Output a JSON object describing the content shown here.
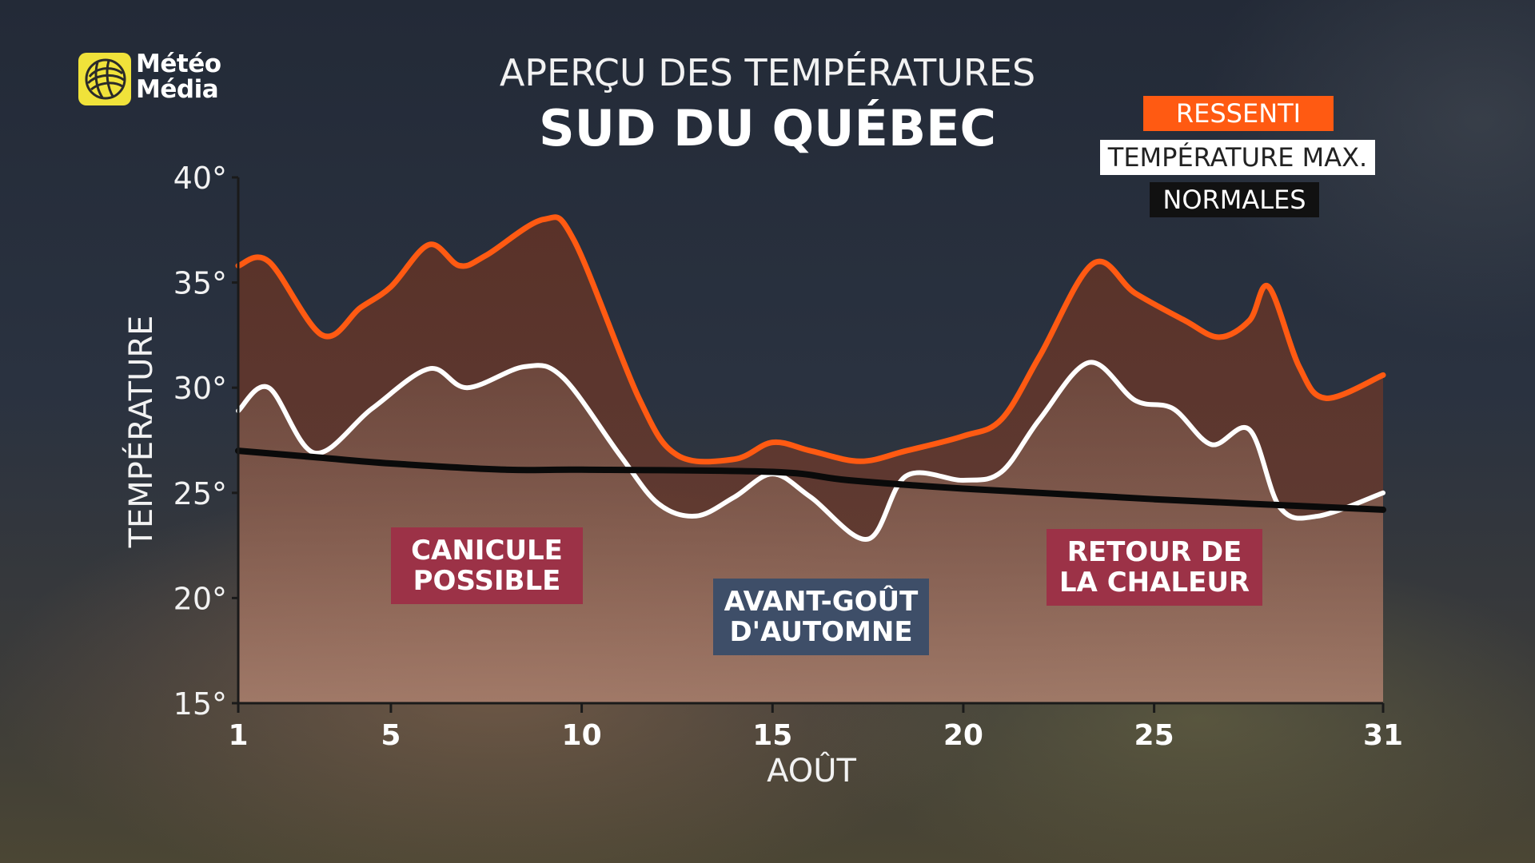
{
  "brand": {
    "line1": "Météo",
    "line2": "Média"
  },
  "title": {
    "line1": "APERÇU DES TEMPÉRATURES",
    "line2": "SUD DU QUÉBEC"
  },
  "legend": {
    "ressenti": "RESSENTI",
    "temp_max": "TEMPÉRATURE MAX.",
    "normales": "NORMALES"
  },
  "callouts": {
    "canicule": [
      "CANICULE",
      "POSSIBLE"
    ],
    "automne": [
      "AVANT-GOÛT",
      "D'AUTOMNE"
    ],
    "chaleur": [
      "RETOUR DE",
      "LA CHALEUR"
    ]
  },
  "colors": {
    "ressenti": "#ff5a12",
    "temp_max": "#ffffff",
    "normales": "#0a0a0a",
    "canicule_box": "#9c3247",
    "automne_box": "#3e4e68"
  },
  "chart_data": {
    "type": "line",
    "title": "APERÇU DES TEMPÉRATURES — SUD DU QUÉBEC",
    "xlabel": "AOÛT",
    "ylabel": "TEMPÉRATURE",
    "xlim": [
      1,
      31
    ],
    "ylim": [
      15,
      40
    ],
    "x_ticks": [
      1,
      5,
      10,
      15,
      20,
      25,
      31
    ],
    "y_ticks": [
      15,
      20,
      25,
      30,
      35,
      40
    ],
    "y_tick_labels": [
      "15°",
      "20°",
      "25°",
      "30°",
      "35°",
      "40°"
    ],
    "legend_position": "top-right",
    "grid": false,
    "series": [
      {
        "name": "RESSENTI",
        "x": [
          1,
          1.8,
          3.2,
          4.2,
          5,
          6,
          6.8,
          7.5,
          9,
          9.8,
          11.5,
          12.5,
          14,
          15,
          16,
          17.3,
          18.5,
          20,
          21,
          22,
          23.4,
          24.5,
          25.8,
          26.7,
          27.5,
          28,
          28.8,
          29.5,
          31
        ],
        "y": [
          35.8,
          36.0,
          32.5,
          33.8,
          34.8,
          36.8,
          35.8,
          36.3,
          38.0,
          37.0,
          29.5,
          26.8,
          26.6,
          27.4,
          27.0,
          26.5,
          27.0,
          27.7,
          28.5,
          31.5,
          35.9,
          34.5,
          33.2,
          32.4,
          33.2,
          34.8,
          31.0,
          29.5,
          30.6
        ]
      },
      {
        "name": "TEMPÉRATURE MAX.",
        "x": [
          1,
          1.8,
          3,
          4.5,
          6,
          7,
          8.5,
          9.5,
          11,
          12,
          13,
          14,
          15,
          16,
          17.5,
          18.5,
          20,
          21,
          22,
          23.3,
          24.5,
          25.5,
          26.5,
          27.5,
          28.3,
          29.3,
          31
        ],
        "y": [
          28.9,
          30.0,
          26.9,
          29.0,
          30.9,
          30.0,
          31.0,
          30.5,
          26.8,
          24.5,
          23.9,
          24.8,
          25.9,
          24.8,
          22.8,
          25.8,
          25.6,
          26.0,
          28.5,
          31.2,
          29.4,
          29.0,
          27.3,
          28.0,
          24.3,
          23.9,
          25.0
        ]
      },
      {
        "name": "NORMALES",
        "x": [
          1,
          3,
          5,
          8,
          10,
          15,
          17,
          20,
          25,
          31
        ],
        "y": [
          27.0,
          26.7,
          26.4,
          26.1,
          26.1,
          26.0,
          25.6,
          25.2,
          24.7,
          24.2
        ]
      }
    ]
  }
}
